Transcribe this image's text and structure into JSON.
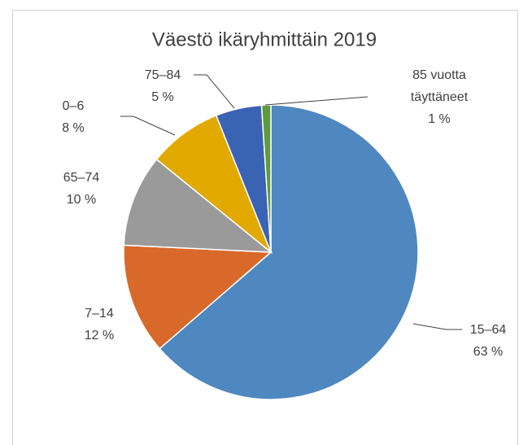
{
  "chart_data": {
    "type": "pie",
    "title": "Väestö ikäryhmittäin  2019",
    "categories": [
      "15–64",
      "7–14",
      "65–74",
      "0–6",
      "75–84",
      "85 vuotta täyttäneet"
    ],
    "values": [
      63,
      12,
      10,
      8,
      5,
      1
    ],
    "value_labels": [
      "63 %",
      "12 %",
      "10 %",
      "8 %",
      "5 %",
      "1 %"
    ],
    "colors": [
      "#4f87c0",
      "#d8692b",
      "#9a9a9a",
      "#e2a900",
      "#3b63b3",
      "#5b9c3c"
    ]
  }
}
